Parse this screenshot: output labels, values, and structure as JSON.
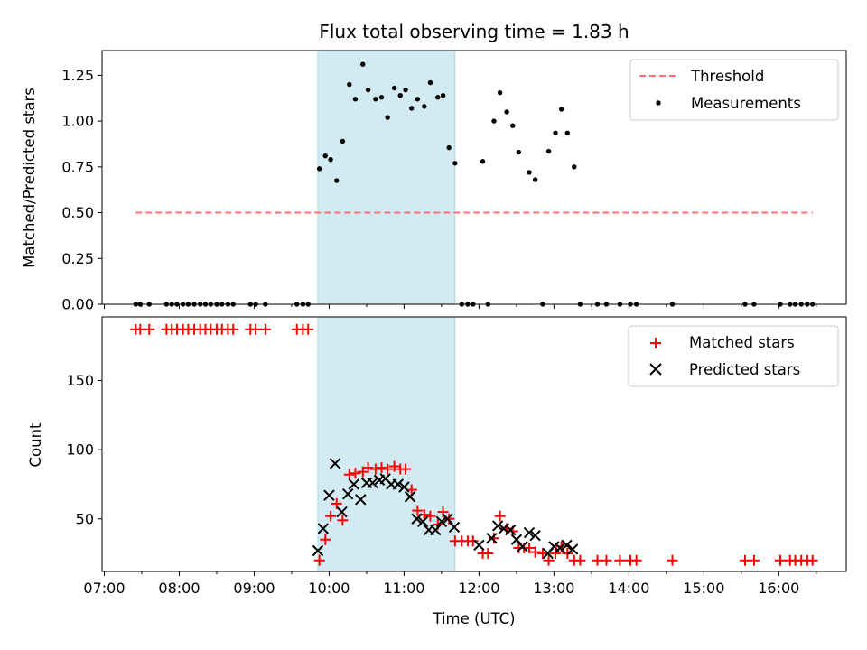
{
  "chart_data": [
    {
      "type": "scatter",
      "panel": "top",
      "title": "Flux total observing time = 1.83 h",
      "ylabel": "Matched/Predicted stars",
      "xlabel": "",
      "xlim": [
        6.97,
        16.9
      ],
      "ylim": [
        0.0,
        1.385
      ],
      "y_ticks": [
        0.0,
        0.25,
        0.5,
        0.75,
        1.0,
        1.25
      ],
      "y_tick_labels": [
        "0.00",
        "0.25",
        "0.50",
        "0.75",
        "1.00",
        "1.25"
      ],
      "x_ticks": [
        7,
        8,
        9,
        10,
        11,
        12,
        13,
        14,
        15,
        16
      ],
      "shaded_span": [
        9.85,
        11.68
      ],
      "shade_color": "#add8e6",
      "threshold": {
        "name": "Threshold",
        "value": 0.5,
        "x_range": [
          7.42,
          16.45
        ],
        "color": "#ff7070"
      },
      "series": [
        {
          "name": "Measurements",
          "color": "#000000",
          "x": [
            7.42,
            7.48,
            7.6,
            7.83,
            7.9,
            7.97,
            8.05,
            8.12,
            8.2,
            8.28,
            8.35,
            8.42,
            8.5,
            8.57,
            8.65,
            8.72,
            8.95,
            9.02,
            9.15,
            9.57,
            9.65,
            9.72,
            9.87,
            9.95,
            10.02,
            10.1,
            10.18,
            10.27,
            10.35,
            10.45,
            10.52,
            10.62,
            10.7,
            10.78,
            10.87,
            10.95,
            11.02,
            11.1,
            11.18,
            11.27,
            11.35,
            11.45,
            11.52,
            11.6,
            11.68,
            11.77,
            11.85,
            11.92,
            12.05,
            12.12,
            12.2,
            12.28,
            12.37,
            12.45,
            12.53,
            12.67,
            12.75,
            12.85,
            12.93,
            13.02,
            13.1,
            13.18,
            13.27,
            13.35,
            13.58,
            13.7,
            13.88,
            14.02,
            14.1,
            14.58,
            15.55,
            15.67,
            16.02,
            16.15,
            16.22,
            16.3,
            16.38,
            16.45
          ],
          "y": [
            0,
            0,
            0,
            0,
            0,
            0,
            0,
            0,
            0,
            0,
            0,
            0,
            0,
            0,
            0,
            0,
            0,
            0,
            0,
            0,
            0,
            0,
            0.74,
            0.81,
            0.79,
            0.675,
            0.89,
            1.2,
            1.12,
            1.31,
            1.17,
            1.12,
            1.13,
            1.02,
            1.18,
            1.14,
            1.17,
            1.07,
            1.12,
            1.08,
            1.21,
            1.13,
            1.14,
            0.855,
            0.77,
            0,
            0,
            0,
            0.78,
            0,
            1.0,
            1.155,
            1.05,
            0.975,
            0.83,
            0.72,
            0.68,
            0,
            0.835,
            0.935,
            1.065,
            0.935,
            0.75,
            0,
            0,
            0,
            0,
            0,
            0,
            0,
            0,
            0,
            0,
            0,
            0,
            0,
            0,
            0
          ]
        }
      ]
    },
    {
      "type": "scatter",
      "panel": "bottom",
      "title": "",
      "xlabel": "Time (UTC)",
      "ylabel": "Count",
      "xlim": [
        6.97,
        16.9
      ],
      "ylim": [
        12,
        196
      ],
      "y_ticks": [
        50,
        100,
        150
      ],
      "y_tick_labels": [
        "50",
        "100",
        "150"
      ],
      "x_ticks": [
        7,
        8,
        9,
        10,
        11,
        12,
        13,
        14,
        15,
        16
      ],
      "x_tick_labels": [
        "07:00",
        "08:00",
        "09:00",
        "10:00",
        "11:00",
        "12:00",
        "13:00",
        "14:00",
        "15:00",
        "16:00"
      ],
      "shaded_span": [
        9.85,
        11.68
      ],
      "series": [
        {
          "name": "Matched stars",
          "marker": "plus",
          "color": "#ff0000",
          "x": [
            7.42,
            7.48,
            7.6,
            7.83,
            7.9,
            7.97,
            8.05,
            8.12,
            8.2,
            8.28,
            8.35,
            8.42,
            8.5,
            8.57,
            8.65,
            8.72,
            8.95,
            9.02,
            9.15,
            9.57,
            9.65,
            9.72,
            9.87,
            9.95,
            10.02,
            10.1,
            10.18,
            10.27,
            10.35,
            10.45,
            10.52,
            10.62,
            10.7,
            10.78,
            10.87,
            10.95,
            11.02,
            11.1,
            11.18,
            11.27,
            11.35,
            11.45,
            11.52,
            11.6,
            11.68,
            11.77,
            11.85,
            11.92,
            12.05,
            12.12,
            12.2,
            12.28,
            12.37,
            12.45,
            12.53,
            12.6,
            12.67,
            12.75,
            12.85,
            12.93,
            13.02,
            13.1,
            13.18,
            13.27,
            13.35,
            13.58,
            13.7,
            13.88,
            14.02,
            14.1,
            14.58,
            15.55,
            15.67,
            16.02,
            16.15,
            16.22,
            16.3,
            16.38,
            16.45
          ],
          "y": [
            187,
            187,
            187,
            187,
            187,
            187,
            187,
            187,
            187,
            187,
            187,
            187,
            187,
            187,
            187,
            187,
            187,
            187,
            187,
            187,
            187,
            187,
            20,
            35,
            52,
            61,
            49,
            82,
            83,
            84,
            87,
            86,
            87,
            86,
            88,
            86,
            86,
            71,
            56,
            53,
            52,
            46,
            55,
            50,
            34,
            34,
            34,
            34,
            25,
            25,
            36,
            52,
            43,
            41,
            29,
            29,
            29,
            26,
            25,
            20,
            25,
            30,
            25,
            20,
            20,
            20,
            20,
            20,
            20,
            20,
            20,
            20,
            20,
            20,
            20,
            20,
            20,
            20,
            20
          ]
        },
        {
          "name": "Predicted stars",
          "marker": "x",
          "color": "#000000",
          "x": [
            9.85,
            9.92,
            10.0,
            10.08,
            10.17,
            10.25,
            10.33,
            10.42,
            10.5,
            10.58,
            10.67,
            10.75,
            10.83,
            10.92,
            11.0,
            11.08,
            11.17,
            11.25,
            11.33,
            11.42,
            11.5,
            11.58,
            11.67,
            12.0,
            12.17,
            12.25,
            12.33,
            12.42,
            12.5,
            12.58,
            12.67,
            12.75,
            12.92,
            13.0,
            13.08,
            13.17,
            13.25
          ],
          "y": [
            27,
            43,
            67,
            90,
            55,
            68,
            75,
            64,
            76,
            76,
            78,
            79,
            75,
            75,
            73,
            66,
            50,
            48,
            42,
            42,
            48,
            50,
            44,
            31,
            36,
            45,
            43,
            42,
            35,
            30,
            40,
            38,
            25,
            30,
            29,
            31,
            28
          ]
        }
      ]
    }
  ],
  "legend_top": [
    "Threshold",
    "Measurements"
  ],
  "legend_bottom": [
    "Matched stars",
    "Predicted stars"
  ]
}
